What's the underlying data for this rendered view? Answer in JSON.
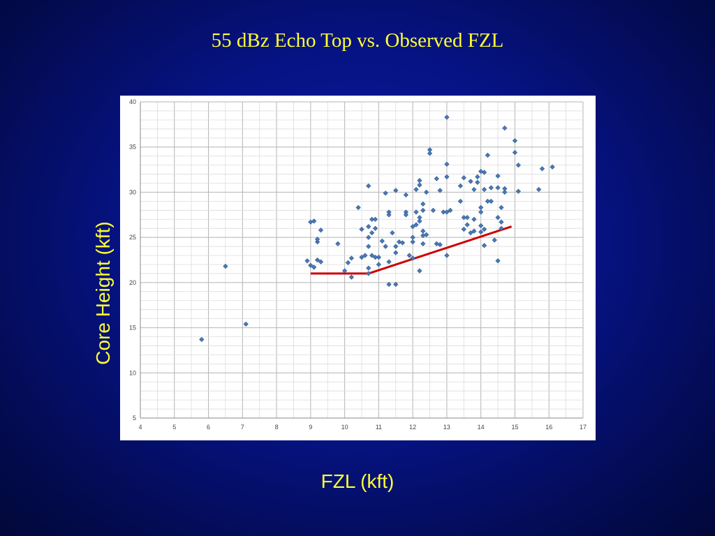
{
  "title": "55 dBz Echo Top vs. Observed FZL",
  "chart_data": {
    "type": "scatter",
    "title": "55 dBz Echo Top vs. Observed FZL",
    "xlabel": "FZL (kft)",
    "ylabel": "Core Height (kft)",
    "xlim": [
      4,
      17
    ],
    "ylim": [
      5,
      40
    ],
    "x_ticks": [
      "4",
      "5",
      "6",
      "7",
      "8",
      "9",
      "10",
      "11",
      "12",
      "13",
      "14",
      "15",
      "16",
      "17"
    ],
    "y_ticks": [
      "5",
      "10",
      "15",
      "20",
      "25",
      "30",
      "35",
      "40"
    ],
    "grid": true,
    "legend": "none",
    "colors": {
      "points": "#4a78b5",
      "trend": "#cc0000",
      "grid_major": "#b4b4b4",
      "grid_minor": "#dcdcdc"
    },
    "series": [
      {
        "points": [
          [
            5.8,
            13.7
          ],
          [
            6.5,
            21.8
          ],
          [
            7.1,
            15.4
          ],
          [
            8.9,
            22.4
          ],
          [
            9.0,
            21.9
          ],
          [
            9.0,
            26.7
          ],
          [
            9.1,
            26.8
          ],
          [
            9.1,
            21.7
          ],
          [
            9.2,
            24.5
          ],
          [
            9.2,
            24.8
          ],
          [
            9.2,
            22.5
          ],
          [
            9.3,
            22.3
          ],
          [
            9.3,
            25.8
          ],
          [
            9.8,
            24.3
          ],
          [
            10.0,
            21.3
          ],
          [
            10.1,
            22.2
          ],
          [
            10.2,
            22.7
          ],
          [
            10.2,
            20.6
          ],
          [
            10.4,
            28.3
          ],
          [
            10.5,
            22.8
          ],
          [
            10.5,
            25.9
          ],
          [
            10.6,
            23.0
          ],
          [
            10.7,
            30.7
          ],
          [
            10.7,
            26.2
          ],
          [
            10.7,
            25.0
          ],
          [
            10.7,
            24.0
          ],
          [
            10.7,
            21.6
          ],
          [
            10.7,
            21.0
          ],
          [
            10.8,
            23.0
          ],
          [
            10.8,
            25.5
          ],
          [
            10.8,
            27.0
          ],
          [
            10.9,
            26.0
          ],
          [
            10.9,
            27.0
          ],
          [
            10.9,
            22.8
          ],
          [
            11.0,
            22.8
          ],
          [
            11.0,
            22.0
          ],
          [
            11.1,
            24.6
          ],
          [
            11.2,
            24.0
          ],
          [
            11.2,
            29.9
          ],
          [
            11.3,
            27.8
          ],
          [
            11.3,
            27.5
          ],
          [
            11.3,
            22.3
          ],
          [
            11.3,
            19.8
          ],
          [
            11.4,
            25.5
          ],
          [
            11.5,
            30.2
          ],
          [
            11.5,
            24.0
          ],
          [
            11.5,
            23.3
          ],
          [
            11.5,
            19.8
          ],
          [
            11.6,
            24.5
          ],
          [
            11.7,
            24.4
          ],
          [
            11.8,
            27.8
          ],
          [
            11.8,
            27.5
          ],
          [
            11.8,
            29.7
          ],
          [
            11.9,
            23.0
          ],
          [
            12.0,
            26.2
          ],
          [
            12.0,
            25.0
          ],
          [
            12.0,
            24.5
          ],
          [
            12.0,
            22.7
          ],
          [
            12.1,
            26.4
          ],
          [
            12.1,
            27.8
          ],
          [
            12.1,
            30.3
          ],
          [
            12.2,
            31.3
          ],
          [
            12.2,
            30.8
          ],
          [
            12.2,
            27.2
          ],
          [
            12.2,
            26.8
          ],
          [
            12.2,
            21.3
          ],
          [
            12.3,
            25.2
          ],
          [
            12.3,
            25.7
          ],
          [
            12.3,
            24.3
          ],
          [
            12.3,
            28.0
          ],
          [
            12.3,
            28.7
          ],
          [
            12.4,
            30.0
          ],
          [
            12.4,
            25.3
          ],
          [
            12.5,
            34.7
          ],
          [
            12.5,
            34.3
          ],
          [
            12.6,
            28.0
          ],
          [
            12.7,
            31.5
          ],
          [
            12.7,
            24.3
          ],
          [
            12.8,
            30.2
          ],
          [
            12.8,
            24.2
          ],
          [
            12.9,
            27.8
          ],
          [
            13.0,
            38.3
          ],
          [
            13.0,
            33.1
          ],
          [
            13.0,
            31.7
          ],
          [
            13.0,
            27.8
          ],
          [
            13.0,
            23.0
          ],
          [
            13.1,
            28.0
          ],
          [
            13.4,
            30.7
          ],
          [
            13.4,
            29.0
          ],
          [
            13.5,
            31.6
          ],
          [
            13.5,
            27.2
          ],
          [
            13.5,
            25.9
          ],
          [
            13.6,
            26.4
          ],
          [
            13.6,
            27.2
          ],
          [
            13.7,
            31.2
          ],
          [
            13.7,
            25.5
          ],
          [
            13.8,
            30.3
          ],
          [
            13.8,
            25.7
          ],
          [
            13.8,
            27.0
          ],
          [
            13.9,
            31.7
          ],
          [
            13.9,
            31.1
          ],
          [
            14.0,
            32.3
          ],
          [
            14.0,
            28.3
          ],
          [
            14.0,
            27.8
          ],
          [
            14.0,
            26.3
          ],
          [
            14.0,
            25.6
          ],
          [
            14.1,
            32.2
          ],
          [
            14.1,
            30.3
          ],
          [
            14.1,
            25.9
          ],
          [
            14.1,
            24.1
          ],
          [
            14.2,
            34.1
          ],
          [
            14.2,
            29.0
          ],
          [
            14.3,
            30.5
          ],
          [
            14.3,
            29.0
          ],
          [
            14.4,
            24.7
          ],
          [
            14.5,
            31.8
          ],
          [
            14.5,
            30.5
          ],
          [
            14.5,
            27.2
          ],
          [
            14.5,
            22.4
          ],
          [
            14.6,
            28.3
          ],
          [
            14.6,
            26.7
          ],
          [
            14.6,
            26.0
          ],
          [
            14.7,
            37.1
          ],
          [
            14.7,
            30.4
          ],
          [
            14.7,
            30.0
          ],
          [
            15.0,
            35.7
          ],
          [
            15.0,
            34.4
          ],
          [
            15.1,
            33.0
          ],
          [
            15.1,
            30.1
          ],
          [
            15.7,
            30.3
          ],
          [
            15.8,
            32.6
          ],
          [
            16.1,
            32.8
          ]
        ]
      },
      {
        "type": "line",
        "points": [
          [
            9.0,
            21.0
          ],
          [
            10.7,
            21.0
          ],
          [
            14.9,
            26.2
          ]
        ]
      }
    ]
  }
}
